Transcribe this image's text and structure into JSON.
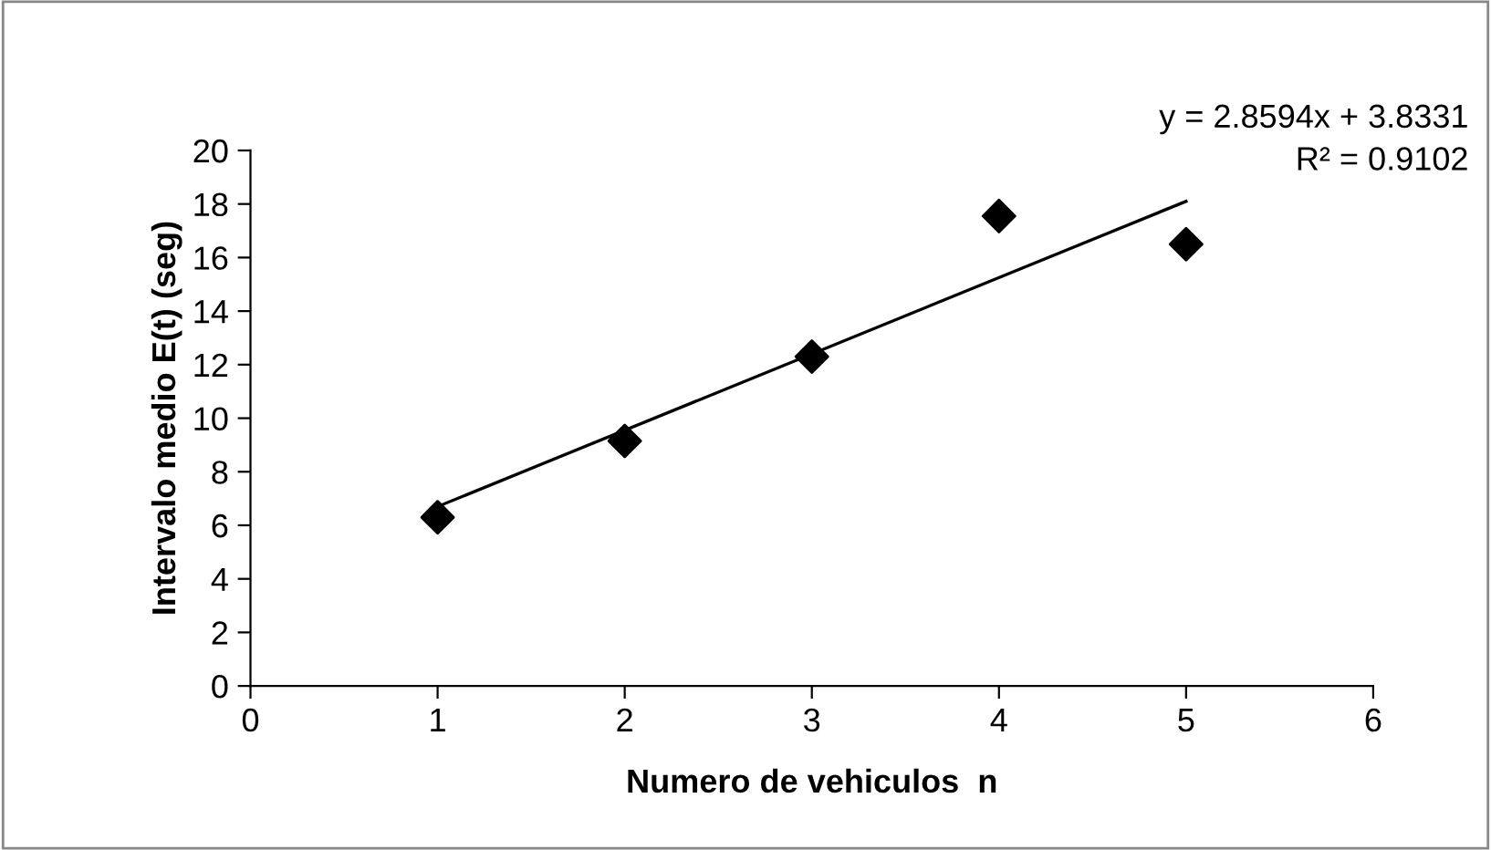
{
  "chart_data": {
    "type": "scatter",
    "xlabel": "Numero de vehiculos  n",
    "ylabel": "Intervalo medio E(t) (seg)",
    "x": [
      1,
      2,
      3,
      4,
      5
    ],
    "series": [
      {
        "color": "#000000",
        "marker": "diamond",
        "values": [
          6.3,
          9.15,
          12.3,
          17.55,
          16.5
        ]
      },
      {
        "type": "line",
        "color": "#000000",
        "marker": "none",
        "x": [
          1,
          5
        ],
        "values": [
          6.7,
          18.1
        ]
      }
    ],
    "annotations": [
      "y = 2.8594x + 3.8331",
      "R² = 0.9102"
    ],
    "xlim": [
      0,
      6
    ],
    "xticks": [
      0,
      1,
      2,
      3,
      4,
      5,
      6
    ],
    "ylim": [
      0,
      20
    ],
    "yticks": [
      0,
      2,
      4,
      6,
      8,
      10,
      12,
      14,
      16,
      18,
      20
    ],
    "grid": false,
    "legend": false
  }
}
